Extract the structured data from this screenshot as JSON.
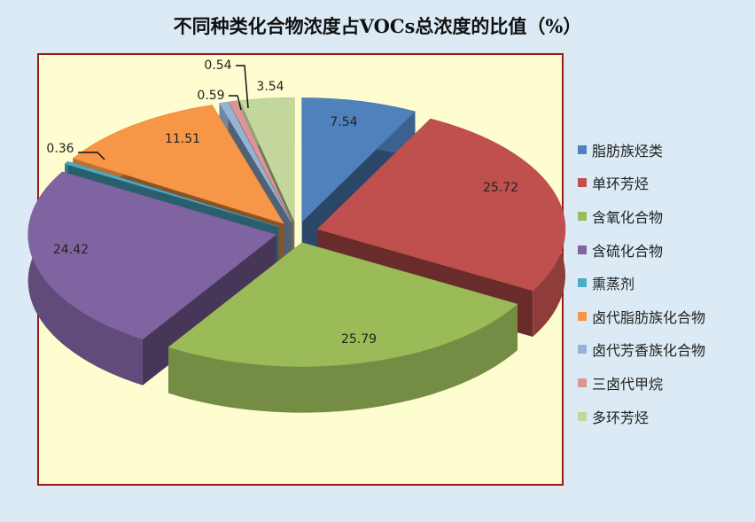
{
  "chart_data": {
    "type": "pie",
    "title": "不同种类化合物浓度占VOCs总浓度的比值（%）",
    "style": "3d-exploded",
    "legend_position": "right",
    "categories": [
      "脂肪族烃类",
      "单环芳烃",
      "含氧化合物",
      "含硫化合物",
      "熏蒸剂",
      "卤代脂肪族化合物",
      "卤代芳香族化合物",
      "三卤代甲烷",
      "多环芳烃"
    ],
    "values": [
      7.54,
      25.72,
      25.79,
      24.42,
      0.36,
      11.51,
      0.59,
      0.54,
      3.54
    ],
    "data_labels": [
      "7.54",
      "25.72",
      "25.79",
      "24.42",
      "0.36",
      "11.51",
      "0.59",
      "0.54",
      "3.54"
    ],
    "colors": [
      "#4f81bd",
      "#c0504d",
      "#9bbb59",
      "#8064a2",
      "#4bacc6",
      "#f79646",
      "#95b3d7",
      "#d99694",
      "#c3d69b"
    ],
    "plot_background": "#fefdd0",
    "page_background": "#dbeaf4"
  }
}
